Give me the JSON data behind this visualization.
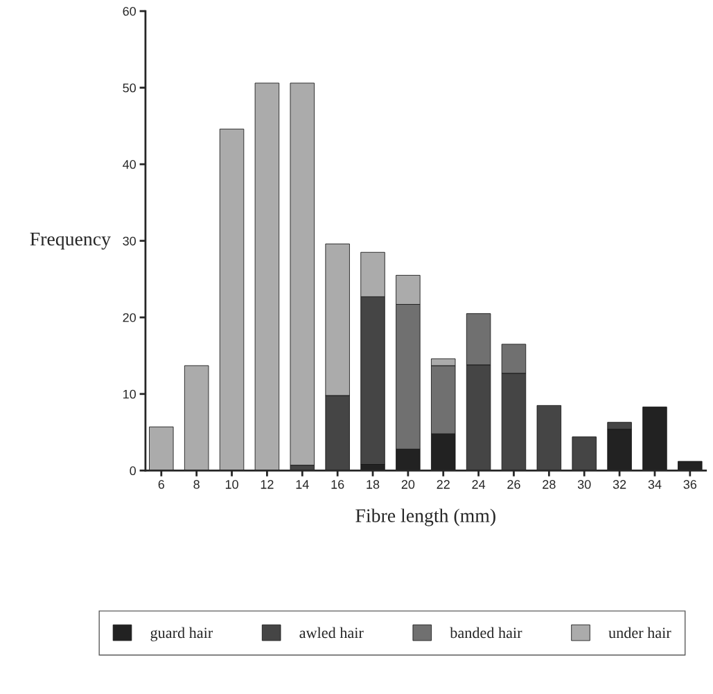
{
  "chart_data": {
    "type": "bar",
    "stacked": true,
    "xlabel": "Fibre length (mm)",
    "ylabel": "Frequency",
    "categories": [
      "6",
      "8",
      "10",
      "12",
      "14",
      "16",
      "18",
      "20",
      "22",
      "24",
      "26",
      "28",
      "30",
      "32",
      "34",
      "36"
    ],
    "series": [
      {
        "name": "guard hair",
        "color": "#222222",
        "values": [
          0,
          0,
          0,
          0,
          0,
          0,
          0.8,
          2.8,
          4.8,
          0,
          0,
          0,
          0,
          5.4,
          8.3,
          1.2
        ]
      },
      {
        "name": "awled hair",
        "color": "#454545",
        "values": [
          0,
          0,
          0,
          0,
          0.7,
          9.8,
          21.9,
          0,
          0,
          13.8,
          12.7,
          8.5,
          4.4,
          0.9,
          0,
          0
        ]
      },
      {
        "name": "banded hair",
        "color": "#707070",
        "values": [
          0,
          0,
          0,
          0,
          0,
          0,
          0,
          18.9,
          8.9,
          6.7,
          3.8,
          0,
          0,
          0,
          0,
          0
        ]
      },
      {
        "name": "under hair",
        "color": "#ababab",
        "values": [
          5.7,
          13.7,
          44.6,
          50.6,
          49.9,
          19.8,
          5.8,
          3.8,
          0.9,
          0,
          0,
          0,
          0,
          0,
          0,
          0
        ]
      }
    ],
    "ylim": [
      0,
      60
    ],
    "yticks": [
      0,
      10,
      20,
      30,
      40,
      50,
      60
    ],
    "grid": false,
    "legend": "bottom"
  }
}
